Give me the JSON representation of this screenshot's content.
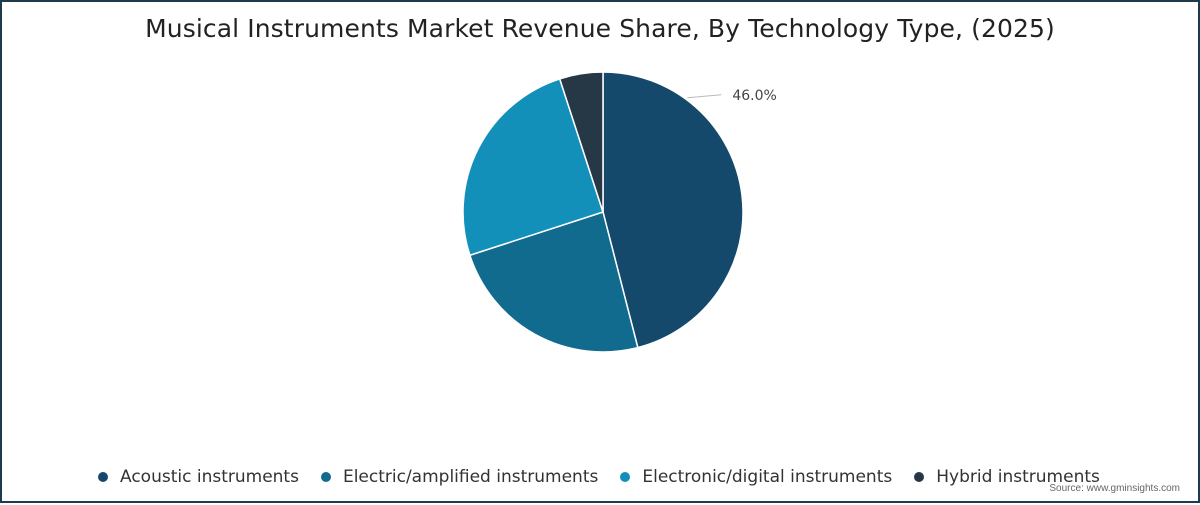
{
  "chart_data": {
    "type": "pie",
    "title": "Musical Instruments Market Revenue Share, By Technology Type, (2025)",
    "slices": [
      {
        "name": "Acoustic instruments",
        "value": 46.0,
        "color": "#15496b",
        "label": "46.0%"
      },
      {
        "name": "Electric/amplified instruments",
        "value": 24.0,
        "color": "#116b8e"
      },
      {
        "name": "Electronic/digital instruments",
        "value": 25.0,
        "color": "#1390ba"
      },
      {
        "name": "Hybrid instruments",
        "value": 5.0,
        "color": "#263745"
      }
    ],
    "legend_position": "bottom",
    "source": "Source: www.gminsights.com"
  }
}
